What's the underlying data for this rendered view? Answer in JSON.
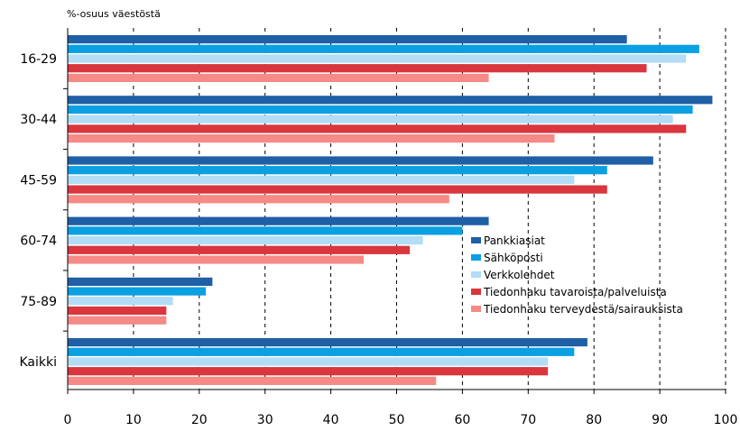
{
  "chart_data": {
    "type": "bar",
    "orientation": "horizontal",
    "ylabel": "%-osuus väestöstä",
    "xlabel": "",
    "xlim": [
      0,
      100
    ],
    "xticks": [
      0,
      10,
      20,
      30,
      40,
      50,
      60,
      70,
      80,
      90,
      100
    ],
    "grid": "vertical dashed",
    "legend_position": "right",
    "categories": [
      "16-29",
      "30-44",
      "45-59",
      "60-74",
      "75-89",
      "Kaikki"
    ],
    "series": [
      {
        "name": "Pankkiasiat",
        "color": "#1f5fa6",
        "values": [
          85,
          98,
          89,
          64,
          22,
          79
        ]
      },
      {
        "name": "Sähköposti",
        "color": "#0aa0e2",
        "values": [
          96,
          95,
          82,
          60,
          21,
          77
        ]
      },
      {
        "name": "Verkkolehdet",
        "color": "#b3dcf5",
        "values": [
          94,
          92,
          77,
          54,
          16,
          73
        ]
      },
      {
        "name": "Tiedonhaku tavaroista/palveluista",
        "color": "#d9363e",
        "values": [
          88,
          94,
          82,
          52,
          15,
          73
        ]
      },
      {
        "name": "Tiedonhaku terveydestä/sairauksista",
        "color": "#f58a87",
        "values": [
          64,
          74,
          58,
          45,
          15,
          56
        ]
      }
    ]
  }
}
